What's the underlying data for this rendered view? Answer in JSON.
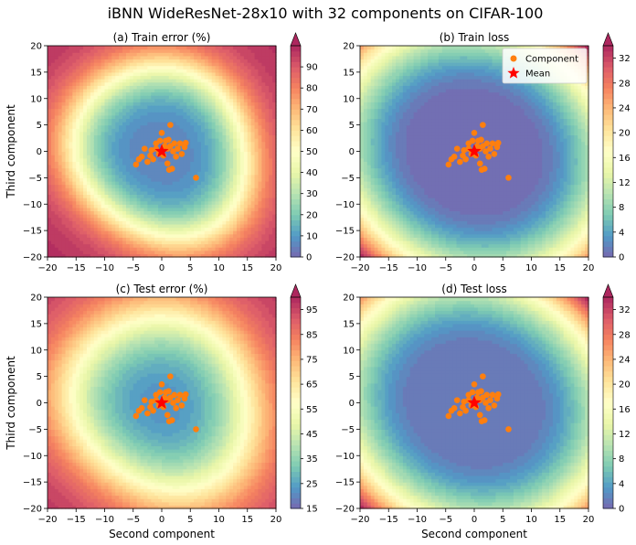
{
  "figure": {
    "title": "iBNN WideResNet-28x10 with 32 components on CIFAR-100"
  },
  "chart_data": [
    {
      "type": "heatmap",
      "title": "(a) Train error (%)",
      "xlabel": "",
      "ylabel": "Third component",
      "xlim": [
        -20,
        20
      ],
      "ylim": [
        -20,
        20
      ],
      "ticks": [
        -20,
        -15,
        -10,
        -5,
        0,
        5,
        10,
        15,
        20
      ],
      "colormap": "Spectral_r",
      "colorbar": {
        "min": 0,
        "max": 100,
        "ticks": [
          0,
          10,
          20,
          30,
          40,
          50,
          60,
          70,
          80,
          90
        ],
        "extend": "max"
      },
      "surface": {
        "kind": "error",
        "inner_value": 4,
        "outer_value": 99,
        "ring_radius": 15.5,
        "ring_width": 3
      },
      "legend": null,
      "series": [
        {
          "name": "Component",
          "kind": "scatter",
          "color": "#ff7f0e",
          "points": [
            [
              -4.5,
              -2.5
            ],
            [
              -4,
              -1.5
            ],
            [
              -3.5,
              -1
            ],
            [
              -3,
              0.5
            ],
            [
              -2.5,
              -2
            ],
            [
              -2,
              -0.8
            ],
            [
              -1.8,
              0.2
            ],
            [
              -1.5,
              -1.5
            ],
            [
              -1,
              0.5
            ],
            [
              -1,
              1.5
            ],
            [
              -0.5,
              -0.5
            ],
            [
              -0.3,
              2
            ],
            [
              0,
              3.5
            ],
            [
              0.3,
              -0.8
            ],
            [
              0.5,
              1
            ],
            [
              0.7,
              2
            ],
            [
              1,
              -2.3
            ],
            [
              1,
              0.5
            ],
            [
              1.2,
              2.2
            ],
            [
              1.3,
              -3.5
            ],
            [
              1.5,
              5
            ],
            [
              1.5,
              1
            ],
            [
              1.8,
              -3.3
            ],
            [
              2,
              0
            ],
            [
              2.2,
              1.5
            ],
            [
              2.5,
              -1
            ],
            [
              2.8,
              0.5
            ],
            [
              3.2,
              1.5
            ],
            [
              3.5,
              -0.5
            ],
            [
              4,
              0.8
            ],
            [
              4.2,
              1.6
            ],
            [
              6,
              -5
            ]
          ]
        },
        {
          "name": "Mean",
          "kind": "star",
          "color": "#ff0000",
          "points": [
            [
              0,
              0
            ]
          ]
        }
      ]
    },
    {
      "type": "heatmap",
      "title": "(b) Train loss",
      "xlabel": "",
      "ylabel": "",
      "xlim": [
        -20,
        20
      ],
      "ylim": [
        -20,
        20
      ],
      "ticks": [
        -20,
        -15,
        -10,
        -5,
        0,
        5,
        10,
        15,
        20
      ],
      "colormap": "Spectral_r",
      "colorbar": {
        "min": 0,
        "max": 34,
        "ticks": [
          0,
          4,
          8,
          12,
          16,
          20,
          24,
          28,
          32
        ],
        "extend": "max"
      },
      "surface": {
        "kind": "loss",
        "inner_value": 0.2,
        "corner_value": 34
      },
      "legend": {
        "position": "top-right",
        "entries": [
          "Component",
          "Mean"
        ]
      },
      "series": [
        {
          "name": "Component",
          "kind": "scatter",
          "color": "#ff7f0e",
          "points": [
            [
              -4.5,
              -2.5
            ],
            [
              -4,
              -1.5
            ],
            [
              -3.5,
              -1
            ],
            [
              -3,
              0.5
            ],
            [
              -2.5,
              -2
            ],
            [
              -2,
              -0.8
            ],
            [
              -1.8,
              0.2
            ],
            [
              -1.5,
              -1.5
            ],
            [
              -1,
              0.5
            ],
            [
              -1,
              1.5
            ],
            [
              -0.5,
              -0.5
            ],
            [
              -0.3,
              2
            ],
            [
              0,
              3.5
            ],
            [
              0.3,
              -0.8
            ],
            [
              0.5,
              1
            ],
            [
              0.7,
              2
            ],
            [
              1,
              -2.3
            ],
            [
              1,
              0.5
            ],
            [
              1.2,
              2.2
            ],
            [
              1.3,
              -3.5
            ],
            [
              1.5,
              5
            ],
            [
              1.5,
              1
            ],
            [
              1.8,
              -3.3
            ],
            [
              2,
              0
            ],
            [
              2.2,
              1.5
            ],
            [
              2.5,
              -1
            ],
            [
              2.8,
              0.5
            ],
            [
              3.2,
              1.5
            ],
            [
              3.5,
              -0.5
            ],
            [
              4,
              0.8
            ],
            [
              4.2,
              1.6
            ],
            [
              6,
              -5
            ]
          ]
        },
        {
          "name": "Mean",
          "kind": "star",
          "color": "#ff0000",
          "points": [
            [
              0,
              0
            ]
          ]
        }
      ]
    },
    {
      "type": "heatmap",
      "title": "(c) Test error (%)",
      "xlabel": "Second component",
      "ylabel": "Third component",
      "xlim": [
        -20,
        20
      ],
      "ylim": [
        -20,
        20
      ],
      "ticks": [
        -20,
        -15,
        -10,
        -5,
        0,
        5,
        10,
        15,
        20
      ],
      "colormap": "Spectral_r",
      "colorbar": {
        "min": 15,
        "max": 100,
        "ticks": [
          15,
          25,
          35,
          45,
          55,
          65,
          75,
          85,
          95
        ],
        "extend": "max"
      },
      "surface": {
        "kind": "error",
        "inner_value": 20,
        "outer_value": 99,
        "ring_radius": 16,
        "ring_width": 4
      },
      "legend": null,
      "series": [
        {
          "name": "Component",
          "kind": "scatter",
          "color": "#ff7f0e",
          "points": [
            [
              -4.5,
              -2.5
            ],
            [
              -4,
              -1.5
            ],
            [
              -3.5,
              -1
            ],
            [
              -3,
              0.5
            ],
            [
              -2.5,
              -2
            ],
            [
              -2,
              -0.8
            ],
            [
              -1.8,
              0.2
            ],
            [
              -1.5,
              -1.5
            ],
            [
              -1,
              0.5
            ],
            [
              -1,
              1.5
            ],
            [
              -0.5,
              -0.5
            ],
            [
              -0.3,
              2
            ],
            [
              0,
              3.5
            ],
            [
              0.3,
              -0.8
            ],
            [
              0.5,
              1
            ],
            [
              0.7,
              2
            ],
            [
              1,
              -2.3
            ],
            [
              1,
              0.5
            ],
            [
              1.2,
              2.2
            ],
            [
              1.3,
              -3.5
            ],
            [
              1.5,
              5
            ],
            [
              1.5,
              1
            ],
            [
              1.8,
              -3.3
            ],
            [
              2,
              0
            ],
            [
              2.2,
              1.5
            ],
            [
              2.5,
              -1
            ],
            [
              2.8,
              0.5
            ],
            [
              3.2,
              1.5
            ],
            [
              3.5,
              -0.5
            ],
            [
              4,
              0.8
            ],
            [
              4.2,
              1.6
            ],
            [
              6,
              -5
            ]
          ]
        },
        {
          "name": "Mean",
          "kind": "star",
          "color": "#ff0000",
          "points": [
            [
              0,
              0
            ]
          ]
        }
      ]
    },
    {
      "type": "heatmap",
      "title": "(d) Test loss",
      "xlabel": "Second component",
      "ylabel": "",
      "xlim": [
        -20,
        20
      ],
      "ylim": [
        -20,
        20
      ],
      "ticks": [
        -20,
        -15,
        -10,
        -5,
        0,
        5,
        10,
        15,
        20
      ],
      "colormap": "Spectral_r",
      "colorbar": {
        "min": 0,
        "max": 34,
        "ticks": [
          0,
          4,
          8,
          12,
          16,
          20,
          24,
          28,
          32
        ],
        "extend": "max"
      },
      "surface": {
        "kind": "loss",
        "inner_value": 1,
        "corner_value": 34
      },
      "legend": null,
      "series": [
        {
          "name": "Component",
          "kind": "scatter",
          "color": "#ff7f0e",
          "points": [
            [
              -4.5,
              -2.5
            ],
            [
              -4,
              -1.5
            ],
            [
              -3.5,
              -1
            ],
            [
              -3,
              0.5
            ],
            [
              -2.5,
              -2
            ],
            [
              -2,
              -0.8
            ],
            [
              -1.8,
              0.2
            ],
            [
              -1.5,
              -1.5
            ],
            [
              -1,
              0.5
            ],
            [
              -1,
              1.5
            ],
            [
              -0.5,
              -0.5
            ],
            [
              -0.3,
              2
            ],
            [
              0,
              3.5
            ],
            [
              0.3,
              -0.8
            ],
            [
              0.5,
              1
            ],
            [
              0.7,
              2
            ],
            [
              1,
              -2.3
            ],
            [
              1,
              0.5
            ],
            [
              1.2,
              2.2
            ],
            [
              1.3,
              -3.5
            ],
            [
              1.5,
              5
            ],
            [
              1.5,
              1
            ],
            [
              1.8,
              -3.3
            ],
            [
              2,
              0
            ],
            [
              2.2,
              1.5
            ],
            [
              2.5,
              -1
            ],
            [
              2.8,
              0.5
            ],
            [
              3.2,
              1.5
            ],
            [
              3.5,
              -0.5
            ],
            [
              4,
              0.8
            ],
            [
              4.2,
              1.6
            ],
            [
              6,
              -5
            ]
          ]
        },
        {
          "name": "Mean",
          "kind": "star",
          "color": "#ff0000",
          "points": [
            [
              0,
              0
            ]
          ]
        }
      ]
    }
  ]
}
